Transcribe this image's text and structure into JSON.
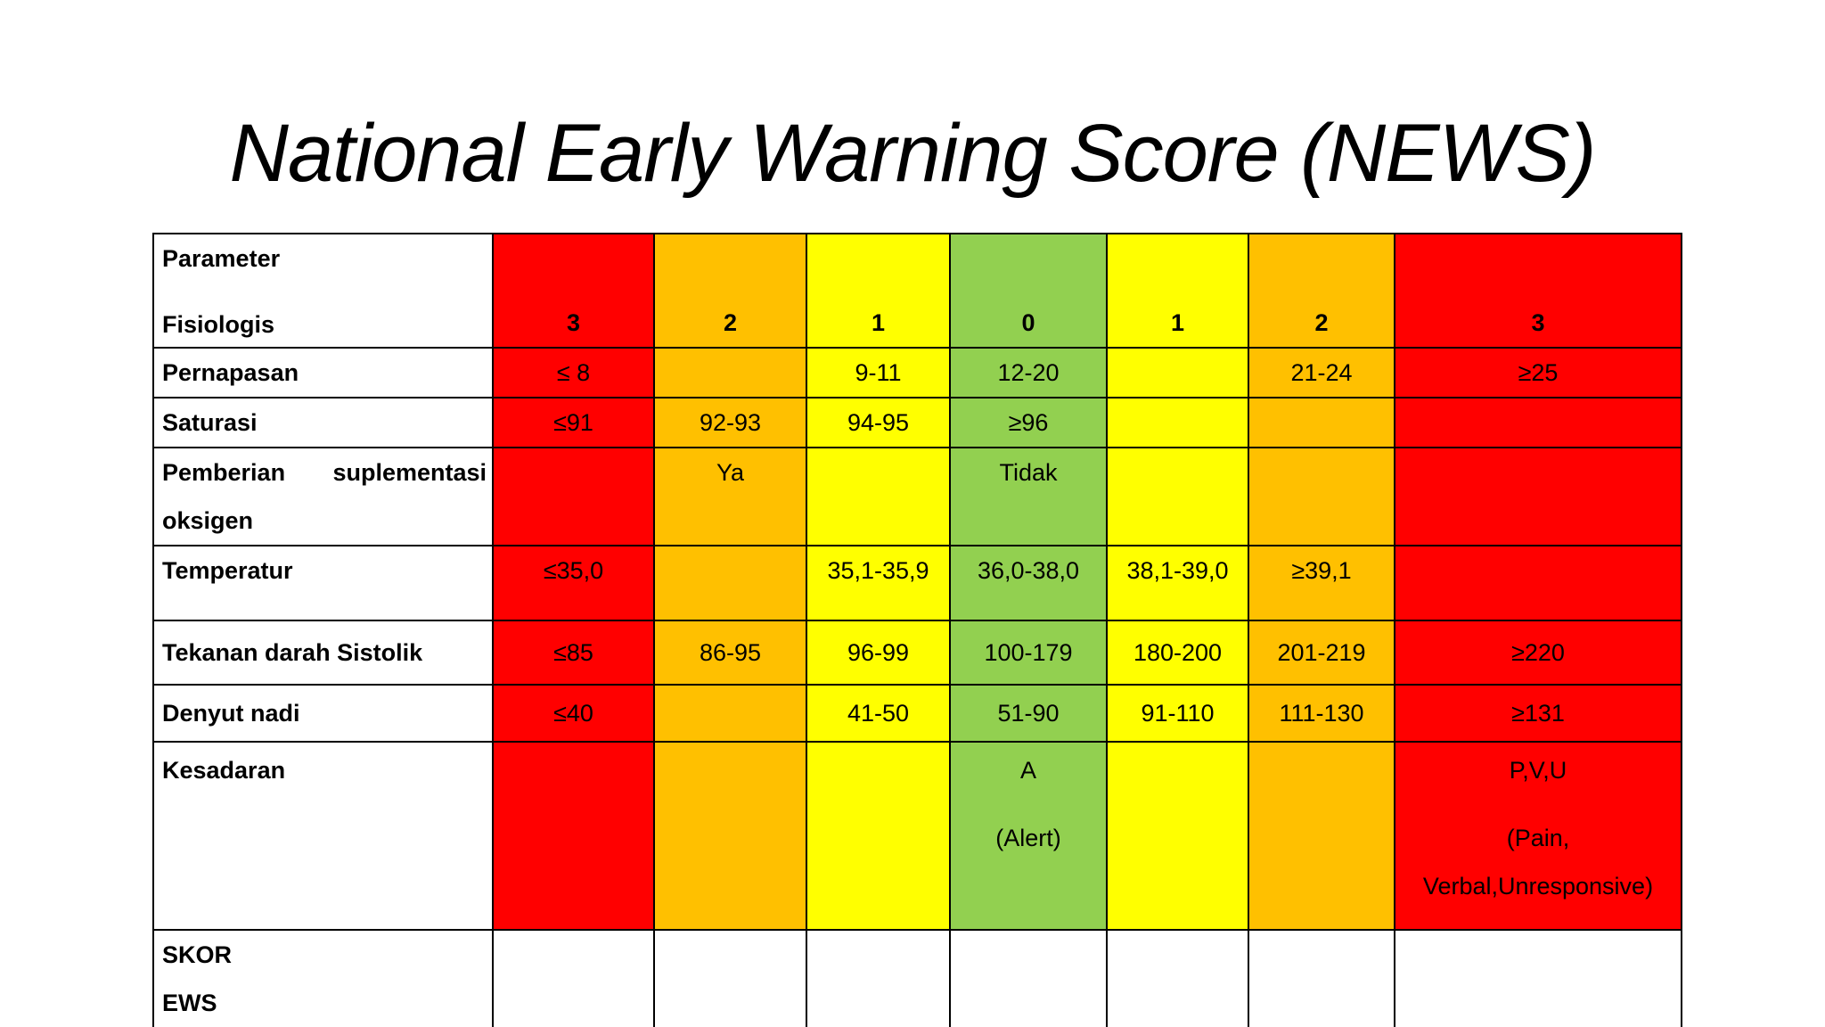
{
  "title": "National Early Warning Score (NEWS)",
  "colors": {
    "red": "#ff0000",
    "orange": "#ffc000",
    "yellow": "#ffff00",
    "green": "#92d050"
  },
  "header": {
    "param_line1": "Parameter",
    "param_line2": "Fisiologis",
    "scores": [
      "3",
      "2",
      "1",
      "0",
      "1",
      "2",
      "3"
    ]
  },
  "rows": [
    {
      "label": "Pernapasan",
      "cells": [
        "≤ 8",
        "",
        "9-11",
        "12-20",
        "",
        "21-24",
        "≥25"
      ]
    },
    {
      "label": "Saturasi",
      "cells": [
        "≤91",
        "92-93",
        "94-95",
        "≥96",
        "",
        "",
        ""
      ]
    },
    {
      "label_word1": "Pemberian",
      "label_word2": "suplementasi",
      "label_line2": "oksigen",
      "cells": [
        "",
        "Ya",
        "",
        "Tidak",
        "",
        "",
        ""
      ]
    },
    {
      "label": "Temperatur",
      "cells": [
        "≤35,0",
        "",
        "35,1-35,9",
        "36,0-38,0",
        "38,1-39,0",
        "≥39,1",
        ""
      ]
    },
    {
      "label": "Tekanan darah Sistolik",
      "cells": [
        "≤85",
        "86-95",
        "96-99",
        "100-179",
        "180-200",
        "201-219",
        "≥220"
      ]
    },
    {
      "label": "Denyut nadi",
      "cells": [
        "≤40",
        "",
        "41-50",
        "51-90",
        "91-110",
        "111-130",
        "≥131"
      ]
    },
    {
      "label": "Kesadaran",
      "cells": [
        "",
        "",
        "",
        "A",
        "",
        "",
        "P,V,U"
      ],
      "green_line2": "(Alert)",
      "red_line2": "(Pain,",
      "red_line3": "Verbal,Unresponsive)"
    }
  ],
  "footer": {
    "label_line1": "SKOR",
    "label_line2": "EWS"
  }
}
